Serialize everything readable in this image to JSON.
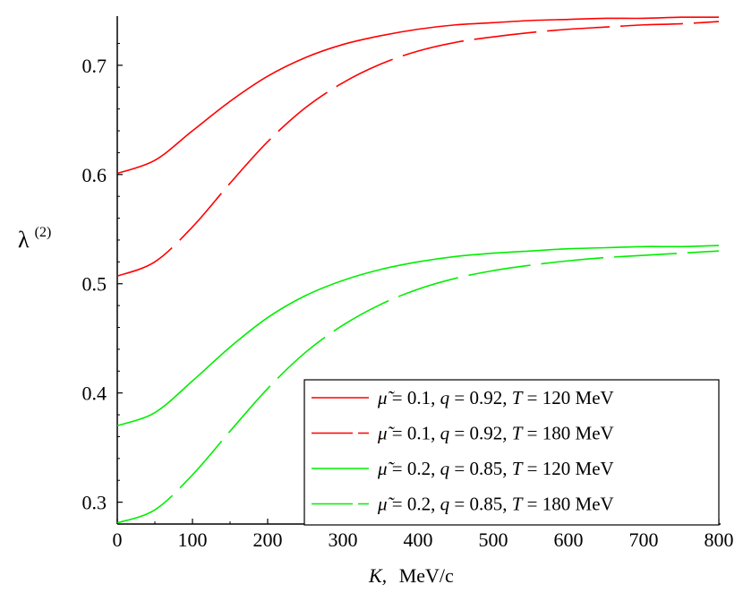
{
  "chart_data": {
    "type": "line",
    "title": "",
    "xlabel_symbol": "K,",
    "xlabel_unit": "MeV/c",
    "ylabel_symbol": "λ",
    "ylabel_superscript": "(2)",
    "xlim": [
      0,
      800
    ],
    "ylim": [
      0.28,
      0.745
    ],
    "x_ticks": [
      0,
      100,
      200,
      300,
      400,
      500,
      600,
      700,
      800
    ],
    "y_ticks": [
      0.3,
      0.4,
      0.5,
      0.6,
      0.7
    ],
    "x_tick_labels": [
      "0",
      "100",
      "200",
      "300",
      "400",
      "500",
      "600",
      "700",
      "800"
    ],
    "y_tick_labels": [
      "0.3",
      "0.4",
      "0.5",
      "0.6",
      "0.7"
    ],
    "grid": false,
    "legend_position": "bottom-right",
    "x": [
      0,
      50,
      100,
      150,
      200,
      250,
      300,
      350,
      400,
      450,
      500,
      550,
      600,
      650,
      700,
      750,
      800
    ],
    "series": [
      {
        "legend": {
          "mu_sym": "μ̃",
          "mu": "0.1",
          "q_sym": "q",
          "q": "0.92",
          "T_sym": "T",
          "T": "120 MeV"
        },
        "color": "#ff0000",
        "dash": "solid",
        "values": [
          0.601,
          0.613,
          0.64,
          0.667,
          0.69,
          0.707,
          0.719,
          0.727,
          0.733,
          0.737,
          0.739,
          0.741,
          0.742,
          0.743,
          0.743,
          0.744,
          0.744
        ]
      },
      {
        "legend": {
          "mu_sym": "μ̃",
          "mu": "0.1",
          "q_sym": "q",
          "q": "0.92",
          "T_sym": "T",
          "T": "180 MeV"
        },
        "color": "#ff0000",
        "dash": "long-dash",
        "values": [
          0.507,
          0.52,
          0.552,
          0.592,
          0.63,
          0.661,
          0.684,
          0.701,
          0.713,
          0.721,
          0.726,
          0.73,
          0.733,
          0.735,
          0.737,
          0.738,
          0.74
        ]
      },
      {
        "legend": {
          "mu_sym": "μ̃",
          "mu": "0.2",
          "q_sym": "q",
          "q": "0.85",
          "T_sym": "T",
          "T": "120 MeV"
        },
        "color": "#00ee00",
        "dash": "solid",
        "values": [
          0.37,
          0.382,
          0.411,
          0.442,
          0.469,
          0.489,
          0.503,
          0.513,
          0.52,
          0.525,
          0.528,
          0.53,
          0.532,
          0.533,
          0.534,
          0.534,
          0.535
        ]
      },
      {
        "legend": {
          "mu_sym": "μ̃",
          "mu": "0.2",
          "q_sym": "q",
          "q": "0.85",
          "T_sym": "T",
          "T": "180 MeV"
        },
        "color": "#00ee00",
        "dash": "long-dash",
        "values": [
          0.281,
          0.293,
          0.325,
          0.365,
          0.404,
          0.437,
          0.462,
          0.481,
          0.495,
          0.505,
          0.512,
          0.517,
          0.521,
          0.524,
          0.526,
          0.528,
          0.53
        ]
      }
    ]
  }
}
